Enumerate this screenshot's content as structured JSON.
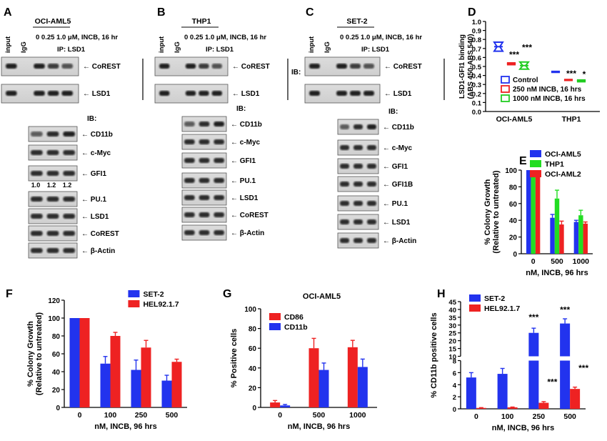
{
  "panels": [
    {
      "id": "A",
      "letter": "A",
      "cell_line": "OCI-AML5",
      "doses_label": "0  0.25 1.0  μM, INCB, 16 hr",
      "lane_labels": [
        "input",
        "IgG"
      ],
      "ip_label": "IP: LSD1",
      "ib_label": "IB:",
      "ib_label2": "IB:",
      "ip_bands": [
        "CoREST",
        "LSD1"
      ],
      "wb_bands": [
        "CD11b",
        "c-Myc",
        "GFI1",
        "PU.1",
        "LSD1",
        "CoREST",
        "β-Actin"
      ],
      "quant": [
        "1.0",
        "1.2",
        "1.2"
      ]
    },
    {
      "id": "B",
      "letter": "B",
      "cell_line": "THP1",
      "doses_label": "0  0.25 1.0  μM, INCB, 16 hr",
      "lane_labels": [
        "input",
        "IgG"
      ],
      "ip_label": "IP: LSD1",
      "ib_label": "IB:",
      "ib_label2": "IB:",
      "ip_bands": [
        "CoREST",
        "LSD1"
      ],
      "wb_bands": [
        "CD11b",
        "c-Myc",
        "GFI1",
        "PU.1",
        "LSD1",
        "CoREST",
        "β-Actin"
      ]
    },
    {
      "id": "C",
      "letter": "C",
      "cell_line": "SET-2",
      "doses_label": "0  0.25 1.0  μM, INCB, 16 hr",
      "lane_labels": [
        "input",
        "IgG"
      ],
      "ip_label": "IP: LSD1",
      "ib_label": "IB:",
      "ib_label2": "IB:",
      "ip_bands": [
        "CoREST",
        "LSD1"
      ],
      "wb_bands": [
        "CD11b",
        "c-Myc",
        "GFI1",
        "GFI1B",
        "PU.1",
        "LSD1",
        "β-Actin"
      ]
    }
  ],
  "chart_data": [
    {
      "id": "D",
      "letter": "D",
      "type": "box",
      "ylabel": "LSD1-GFI1 binding",
      "ylabel2": "(ABS 450-ABS 540)",
      "ylim": [
        0.0,
        1.0
      ],
      "yticks": [
        "0.0",
        "0.1",
        "0.2",
        "0.3",
        "0.4",
        "0.5",
        "0.6",
        "0.7",
        "0.8",
        "0.9",
        "1.0"
      ],
      "categories": [
        "OCI-AML5",
        "THP1"
      ],
      "series": [
        {
          "name": "Control",
          "color": "#2233ee",
          "values": [
            0.72,
            0.44
          ],
          "spread": [
            0.05,
            0.005
          ]
        },
        {
          "name": "250 nM INCB, 16 hrs",
          "color": "#ee2222",
          "values": [
            0.53,
            0.35
          ],
          "spread": [
            0.01,
            0.005
          ]
        },
        {
          "name": "1000 nM INCB, 16 hrs",
          "color": "#22cc22",
          "values": [
            0.51,
            0.34
          ],
          "spread": [
            0.04,
            0.01
          ]
        }
      ],
      "annotations": [
        {
          "label": "***",
          "category": 0,
          "series": 1,
          "y": 0.6
        },
        {
          "label": "***",
          "category": 0,
          "series": 2,
          "y": 0.68
        },
        {
          "label": "***",
          "category": 1,
          "series": 1,
          "y": 0.39
        },
        {
          "label": "*",
          "category": 1,
          "series": 2,
          "y": 0.38
        }
      ],
      "legend_position": "bottom-right"
    },
    {
      "id": "E",
      "letter": "E",
      "type": "bar",
      "ylabel": "% Colony Growth",
      "ylabel2": "(Relative to untreated)",
      "xlabel": "nM, INCB, 96 hrs",
      "ylim": [
        0,
        100
      ],
      "yticks": [
        "0",
        "20",
        "40",
        "60",
        "80",
        "100"
      ],
      "categories": [
        "0",
        "500",
        "1000"
      ],
      "series": [
        {
          "name": "OCI-AML5",
          "color": "#2233ee",
          "values": [
            100,
            43,
            38
          ],
          "errors": [
            0,
            4,
            2
          ]
        },
        {
          "name": "THP1",
          "color": "#22dd22",
          "values": [
            100,
            66,
            46
          ],
          "errors": [
            0,
            10,
            6
          ]
        },
        {
          "name": "OCI-AML2",
          "color": "#ee2222",
          "values": [
            100,
            35,
            36
          ],
          "errors": [
            0,
            4,
            2
          ]
        }
      ],
      "legend_position": "top-right"
    },
    {
      "id": "F",
      "letter": "F",
      "type": "bar",
      "ylabel": "% Colony Growth",
      "ylabel2": "(Relative to untreated)",
      "xlabel": "nM, INCB, 96 hrs",
      "ylim": [
        0,
        120
      ],
      "yticks": [
        "0",
        "20",
        "40",
        "60",
        "80",
        "100",
        "120"
      ],
      "categories": [
        "0",
        "100",
        "250",
        "500"
      ],
      "series": [
        {
          "name": "SET-2",
          "color": "#2233ee",
          "values": [
            100,
            49,
            42,
            30
          ],
          "errors": [
            0,
            8,
            11,
            6
          ]
        },
        {
          "name": "HEL92.1.7",
          "color": "#ee2222",
          "values": [
            100,
            80,
            67,
            51
          ],
          "errors": [
            0,
            4,
            8,
            3
          ]
        }
      ],
      "legend_position": "top-right"
    },
    {
      "id": "G",
      "letter": "G",
      "type": "bar",
      "title": "OCI-AML5",
      "ylabel": "% Positive cells",
      "xlabel": "nM, INCB,  96 hrs",
      "ylim": [
        0,
        100
      ],
      "yticks": [
        "0",
        "20",
        "40",
        "60",
        "80",
        "100"
      ],
      "categories": [
        "0",
        "500",
        "1000"
      ],
      "series": [
        {
          "name": "CD86",
          "color": "#ee2222",
          "values": [
            5,
            60,
            61
          ],
          "errors": [
            2,
            10,
            7
          ]
        },
        {
          "name": "CD11b",
          "color": "#2233ee",
          "values": [
            2,
            38,
            41
          ],
          "errors": [
            1,
            7,
            8
          ]
        }
      ],
      "legend_position": "top-left"
    },
    {
      "id": "H",
      "letter": "H",
      "type": "bar",
      "ylabel": "% CD11b positive cells",
      "xlabel": "nM, INCB, 96 hrs",
      "axis_break": [
        8,
        10
      ],
      "ylim_lower": [
        0,
        8
      ],
      "ylim_upper": [
        10,
        45
      ],
      "yticks_lower": [
        "0",
        "2",
        "4",
        "6",
        "8"
      ],
      "yticks_upper": [
        "10",
        "15",
        "20",
        "25",
        "30",
        "35",
        "40",
        "45"
      ],
      "categories": [
        "0",
        "100",
        "250",
        "500"
      ],
      "series": [
        {
          "name": "SET-2",
          "color": "#2233ee",
          "values": [
            5.2,
            5.8,
            25,
            31
          ],
          "errors": [
            0.8,
            0.9,
            3,
            3
          ]
        },
        {
          "name": "HEL92.1.7",
          "color": "#ee2222",
          "values": [
            0.15,
            0.25,
            1.0,
            3.3
          ],
          "errors": [
            0.05,
            0.05,
            0.2,
            0.3
          ]
        }
      ],
      "annotations": [
        {
          "label": "***",
          "category": 2,
          "series": 0,
          "y": 33
        },
        {
          "label": "***",
          "category": 3,
          "series": 0,
          "y": 38
        },
        {
          "label": "***",
          "category": 2,
          "series": 1,
          "y": 4.0
        },
        {
          "label": "***",
          "category": 3,
          "series": 1,
          "y": 6.3
        }
      ],
      "legend_position": "top-left"
    }
  ]
}
